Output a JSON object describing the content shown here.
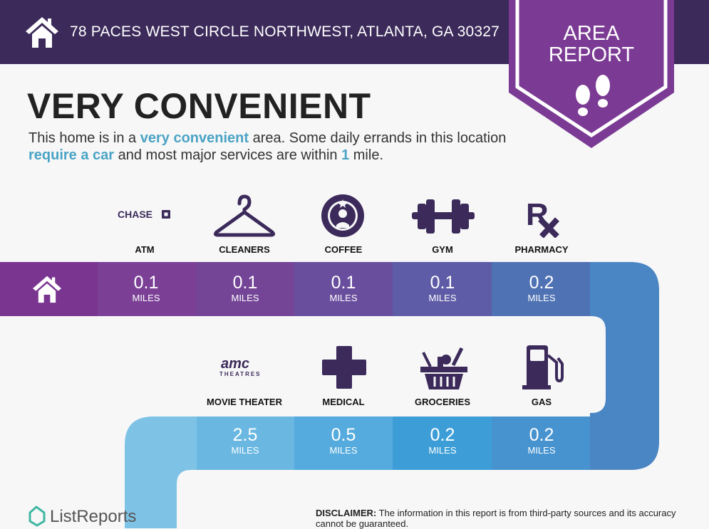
{
  "header": {
    "address": "78 PACES WEST CIRCLE NORTHWEST, ATLANTA, GA 30327"
  },
  "badge": {
    "line1": "AREA",
    "line2": "REPORT"
  },
  "headline": "VERY CONVENIENT",
  "description": {
    "p1": "This home is in a ",
    "h1": "very convenient",
    "p2": " area. Some daily errands in this location ",
    "h2": "require a car",
    "p3": " and most major services are within ",
    "h3": "1",
    "p4": " mile."
  },
  "row1": [
    {
      "label": "ATM",
      "icon": "chase-logo",
      "logo_text": "CHASE",
      "distance": "0.1",
      "unit": "MILES"
    },
    {
      "label": "CLEANERS",
      "icon": "hanger-icon",
      "distance": "0.1",
      "unit": "MILES"
    },
    {
      "label": "COFFEE",
      "icon": "starbucks-logo",
      "distance": "0.1",
      "unit": "MILES"
    },
    {
      "label": "GYM",
      "icon": "dumbbell-icon",
      "distance": "0.1",
      "unit": "MILES"
    },
    {
      "label": "PHARMACY",
      "icon": "rx-icon",
      "distance": "0.2",
      "unit": "MILES"
    }
  ],
  "row2": [
    {
      "label": "MOVIE THEATER",
      "icon": "amc-logo",
      "logo_text": "AMC THEATRES",
      "distance": "2.5",
      "unit": "MILES"
    },
    {
      "label": "MEDICAL",
      "icon": "medical-cross-icon",
      "distance": "0.5",
      "unit": "MILES"
    },
    {
      "label": "GROCERIES",
      "icon": "grocery-basket-icon",
      "distance": "0.2",
      "unit": "MILES"
    },
    {
      "label": "GAS",
      "icon": "gas-pump-icon",
      "distance": "0.2",
      "unit": "MILES"
    }
  ],
  "footer": {
    "brand": "ListReports",
    "disclaimer_label": "DISCLAIMER:",
    "disclaimer_text": " The information in this report is from third-party sources and its accuracy cannot be guaranteed."
  },
  "colors": {
    "header_bg": "#3b2a5a",
    "badge": "#7b3b94",
    "highlight": "#4aa3c4",
    "icon": "#3b2a5a"
  }
}
